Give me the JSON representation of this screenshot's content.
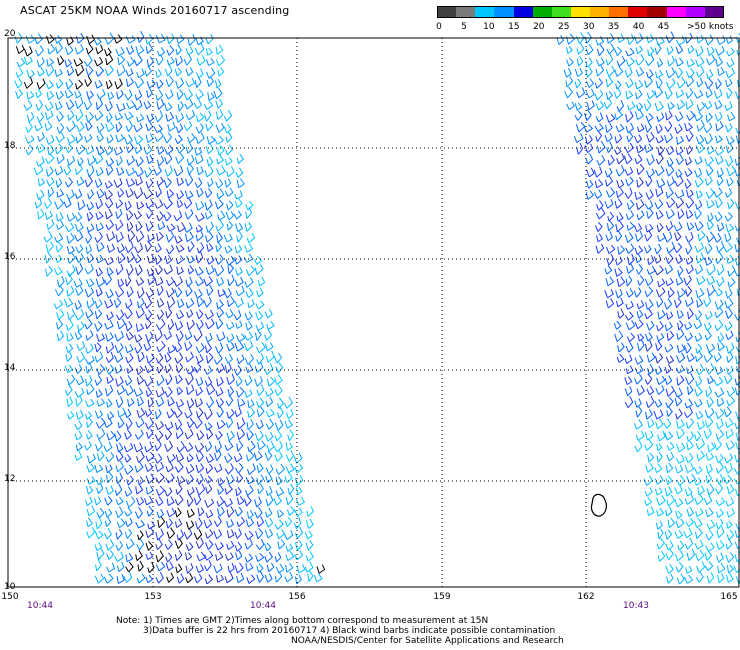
{
  "title": "ASCAT 25KM NOAA Winds 20160717 ascending",
  "colorbar": {
    "colors": [
      "#404040",
      "#7a7a7a",
      "#00c8ff",
      "#0090ff",
      "#0000e0",
      "#00b000",
      "#40e020",
      "#ffe000",
      "#ffb000",
      "#ff7000",
      "#e00000",
      "#a00000",
      "#ff00ff",
      "#b000ff",
      "#600090"
    ],
    "labels": [
      "0",
      "5",
      "10",
      "15",
      "20",
      "25",
      "30",
      "35",
      "40",
      "45",
      ">50 knots"
    ]
  },
  "axes": {
    "lat_labels": [
      "20",
      "18",
      "16",
      "14",
      "12",
      "10"
    ],
    "lon_labels": [
      "150",
      "153",
      "156",
      "159",
      "162",
      "165"
    ],
    "lat_range": [
      10,
      20
    ],
    "lon_range": [
      150,
      165
    ],
    "grid": "dotted"
  },
  "times": [
    "10:44",
    "10:44",
    "10:43"
  ],
  "notes": {
    "line1": "Note: 1) Times are GMT 2)Times along bottom correspond to measurement at 15N",
    "line2": "3)Data buffer is 22 hrs from 20160717 4) Black wind barbs indicate possible contamination",
    "line3": "NOAA/NESDIS/Center for Satellite Applications and Research"
  }
}
